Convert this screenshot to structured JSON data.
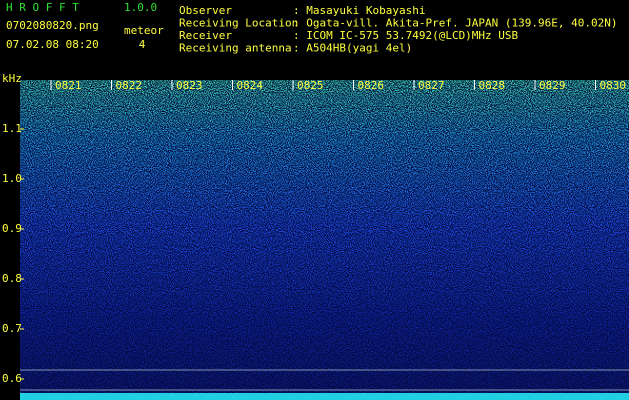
{
  "app": {
    "name": "H R O F F T",
    "version": "1.0.0"
  },
  "file": "0702080820.png",
  "meteor": {
    "label": "meteor",
    "count": 4
  },
  "datetime": "07.02.08 08:20",
  "info": [
    {
      "label": "Observer",
      "value": ": Masayuki Kobayashi"
    },
    {
      "label": "Receiving Location",
      "value": ": Ogata-vill. Akita-Pref. JAPAN (139.96E, 40.02N)"
    },
    {
      "label": "Receiver",
      "value": ": ICOM IC-575 53.7492(@LCD)MHz USB"
    },
    {
      "label": "Receiving antenna",
      "value": ": A504HB(yagi 4el)"
    }
  ],
  "frequency_axis": {
    "unit": "kHz",
    "ticks": [
      "1.1",
      "1.0",
      "0.9",
      "0.8",
      "0.7",
      "0.6"
    ]
  },
  "time_axis": {
    "ticks": [
      "0821",
      "0822",
      "0823",
      "0824",
      "0825",
      "0826",
      "0827",
      "0828",
      "0829",
      "0830"
    ]
  }
}
